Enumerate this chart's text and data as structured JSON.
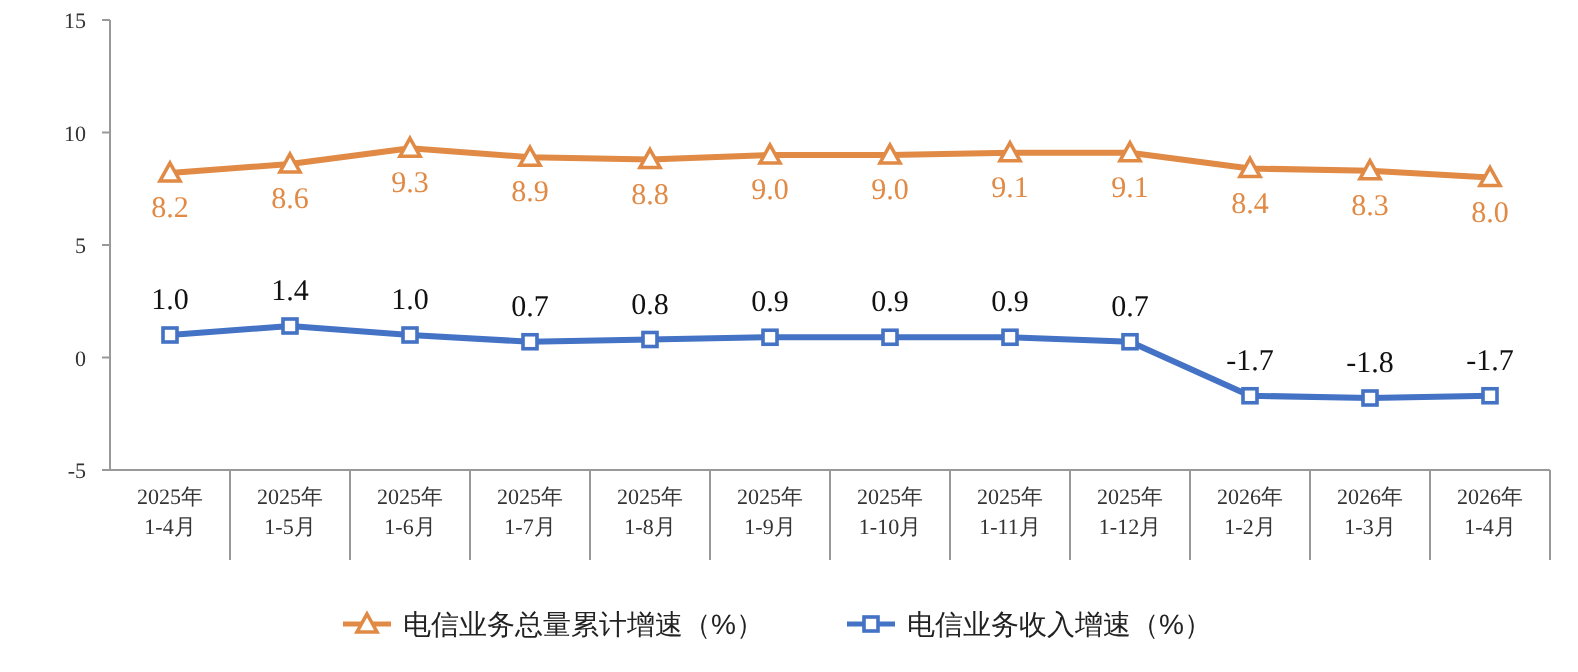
{
  "chart_data": {
    "type": "line",
    "categories": [
      "2025年\n1-4月",
      "2025年\n1-5月",
      "2025年\n1-6月",
      "2025年\n1-7月",
      "2025年\n1-8月",
      "2025年\n1-9月",
      "2025年\n1-10月",
      "2025年\n1-11月",
      "2025年\n1-12月",
      "2026年\n1-2月",
      "2026年\n1-3月",
      "2026年\n1-4月"
    ],
    "series": [
      {
        "name": "电信业务总量累计增速（%）",
        "color": "#e08a45",
        "marker": "triangle",
        "values": [
          8.2,
          8.6,
          9.3,
          8.9,
          8.8,
          9.0,
          9.0,
          9.1,
          9.1,
          8.4,
          8.3,
          8.0
        ],
        "value_labels": [
          "8.2",
          "8.6",
          "9.3",
          "8.9",
          "8.8",
          "9.0",
          "9.0",
          "9.1",
          "9.1",
          "8.4",
          "8.3",
          "8.0"
        ]
      },
      {
        "name": "电信业务收入增速（%）",
        "color": "#4472c4",
        "marker": "square",
        "values": [
          1.0,
          1.4,
          1.0,
          0.7,
          0.8,
          0.9,
          0.9,
          0.9,
          0.7,
          -1.7,
          -1.8,
          -1.7
        ],
        "value_labels": [
          "1.0",
          "1.4",
          "1.0",
          "0.7",
          "0.8",
          "0.9",
          "0.9",
          "0.9",
          "0.7",
          "-1.7",
          "-1.8",
          "-1.7"
        ]
      }
    ],
    "ylim": [
      -5,
      15
    ],
    "yticks": [
      -5,
      0,
      5,
      10,
      15
    ],
    "grid": false,
    "legend": "bottom"
  }
}
